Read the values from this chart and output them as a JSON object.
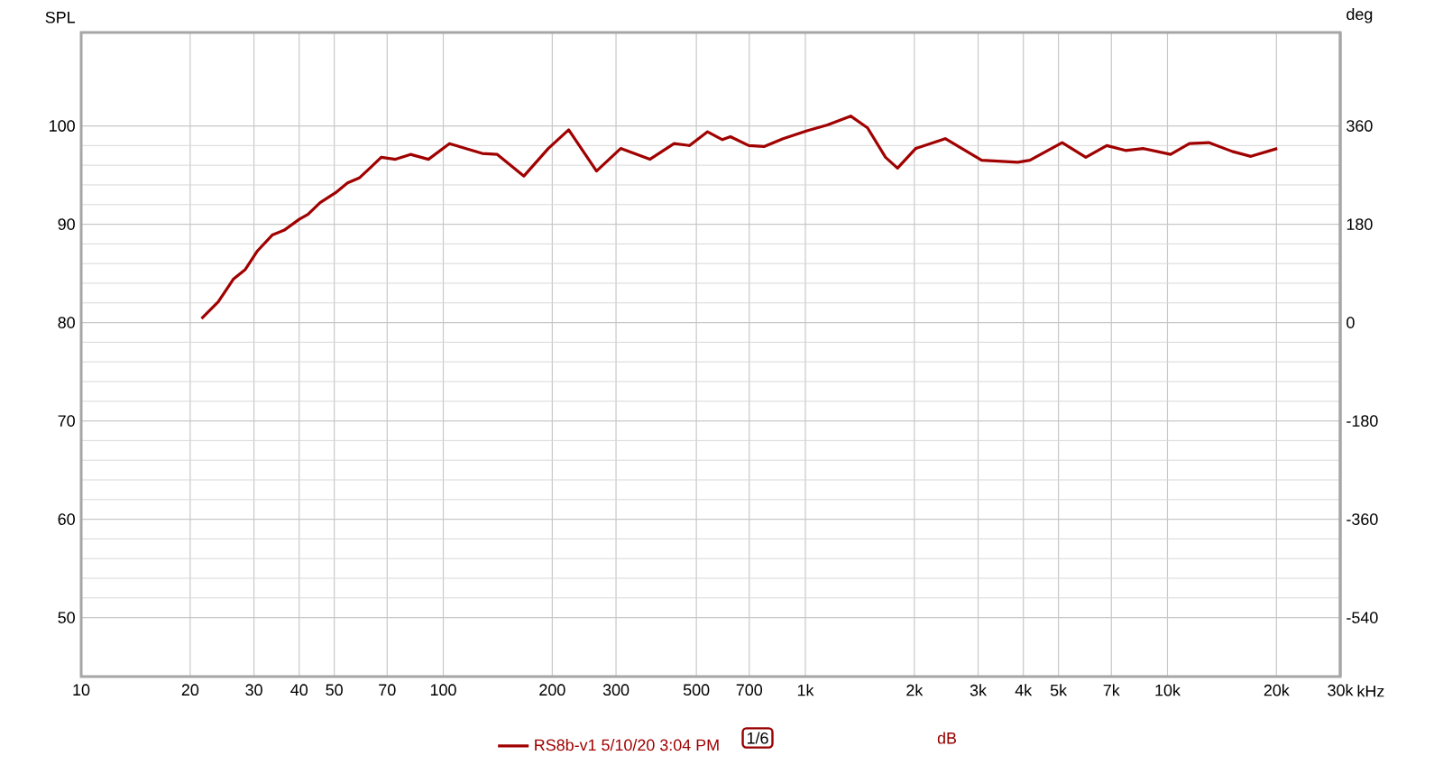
{
  "chart_data": {
    "type": "line",
    "ylabel": "SPL",
    "y2label": "deg",
    "x": [
      21.5,
      23.9,
      26.3,
      28.4,
      30.7,
      33.7,
      36.4,
      40.0,
      42.3,
      45.7,
      50.4,
      54.4,
      58.6,
      63.1,
      67.4,
      73.8,
      81.2,
      91.0,
      104,
      128,
      141,
      167,
      195,
      222,
      265,
      309,
      372,
      434,
      479,
      537,
      590,
      621,
      698,
      769,
      868,
      1010,
      1151,
      1334,
      1485,
      1665,
      1797,
      2017,
      2434,
      3068,
      3860,
      4170,
      5120,
      5950,
      6800,
      7660,
      8570,
      10200,
      11500,
      13000,
      15100,
      17000,
      20100
    ],
    "series": [
      {
        "name": "RS8b-v1 5/10/20 3:04 PM",
        "color": "#a00000",
        "values": [
          80.4,
          82.1,
          84.4,
          85.4,
          87.3,
          88.9,
          89.4,
          90.5,
          91.0,
          92.2,
          93.2,
          94.2,
          94.7,
          95.8,
          96.8,
          96.6,
          97.1,
          96.6,
          98.2,
          97.2,
          97.1,
          94.9,
          97.7,
          99.6,
          95.4,
          97.7,
          96.6,
          98.2,
          98.0,
          99.4,
          98.6,
          98.9,
          98.0,
          97.9,
          98.7,
          99.5,
          100.1,
          101.0,
          99.8,
          96.8,
          95.7,
          97.7,
          98.7,
          96.5,
          96.3,
          96.5,
          98.3,
          96.8,
          98.0,
          97.5,
          97.7,
          97.1,
          98.2,
          98.3,
          97.4,
          96.9,
          97.7
        ]
      }
    ],
    "annotations": [
      "1/6",
      "dB"
    ],
    "log": "x",
    "xlim": [
      10,
      30000
    ],
    "xticks": [
      10,
      20,
      30,
      40,
      50,
      70,
      100,
      200,
      300,
      500,
      700,
      {
        "value": 1000,
        "label": "1k"
      },
      {
        "value": 2000,
        "label": "2k"
      },
      {
        "value": 3000,
        "label": "3k"
      },
      {
        "value": 4000,
        "label": "4k"
      },
      {
        "value": 5000,
        "label": "5k"
      },
      {
        "value": 7000,
        "label": "7k"
      },
      {
        "value": 10000,
        "label": "10k"
      },
      {
        "value": 20000,
        "label": "20k"
      },
      {
        "value": 30000,
        "label": "30k"
      }
    ],
    "xlabel": "kHz",
    "ylim": [
      44,
      109.5
    ],
    "yticks": [
      50,
      60,
      70,
      80,
      90,
      100
    ],
    "y2lim": [
      -648,
      531
    ],
    "y2ticks": [
      -540,
      -360,
      -180,
      0,
      180,
      360
    ],
    "grid": true,
    "legend": "bottom",
    "marker": "none",
    "line_style": "solid"
  }
}
